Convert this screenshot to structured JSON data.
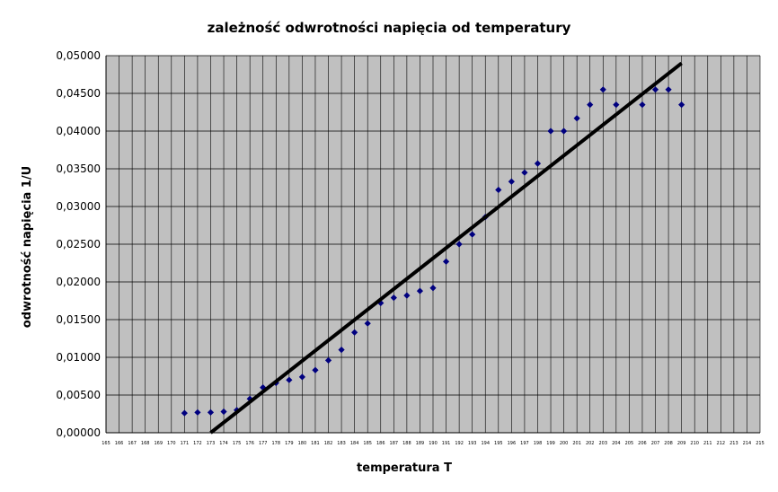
{
  "chart_data": {
    "type": "scatter",
    "title": "zależność odwrotności napięcia od temperatury",
    "xlabel": "temperatura T",
    "ylabel": "odwrotność napięcia 1/U",
    "xlim": [
      165,
      215
    ],
    "ylim": [
      0,
      0.05
    ],
    "x_ticks": [
      165,
      166,
      167,
      168,
      169,
      170,
      171,
      172,
      173,
      174,
      175,
      176,
      177,
      178,
      179,
      180,
      181,
      182,
      183,
      184,
      185,
      186,
      187,
      188,
      189,
      190,
      191,
      192,
      193,
      194,
      195,
      196,
      197,
      198,
      199,
      200,
      201,
      202,
      203,
      204,
      205,
      206,
      207,
      208,
      209,
      210,
      211,
      212,
      213,
      214,
      215
    ],
    "y_ticks": [
      "0,00000",
      "0,00500",
      "0,01000",
      "0,01500",
      "0,02000",
      "0,02500",
      "0,03000",
      "0,03500",
      "0,04000",
      "0,04500",
      "0,05000"
    ],
    "grid": true,
    "legend": "none",
    "series": [
      {
        "marker": "diamond",
        "color": "#00007f",
        "points": [
          [
            171,
            0.0026
          ],
          [
            172,
            0.0027
          ],
          [
            173,
            0.0027
          ],
          [
            174,
            0.0028
          ],
          [
            175,
            0.003
          ],
          [
            176,
            0.0045
          ],
          [
            177,
            0.006
          ],
          [
            178,
            0.0066
          ],
          [
            179,
            0.007
          ],
          [
            180,
            0.0074
          ],
          [
            181,
            0.0083
          ],
          [
            182,
            0.0096
          ],
          [
            183,
            0.011
          ],
          [
            184,
            0.0133
          ],
          [
            185,
            0.0145
          ],
          [
            186,
            0.0172
          ],
          [
            187,
            0.0179
          ],
          [
            188,
            0.0182
          ],
          [
            189,
            0.0188
          ],
          [
            190,
            0.0192
          ],
          [
            191,
            0.0227
          ],
          [
            192,
            0.025
          ],
          [
            193,
            0.0263
          ],
          [
            194,
            0.0286
          ],
          [
            195,
            0.0322
          ],
          [
            196,
            0.0333
          ],
          [
            197,
            0.0345
          ],
          [
            198,
            0.0357
          ],
          [
            199,
            0.04
          ],
          [
            200,
            0.04
          ],
          [
            201,
            0.0417
          ],
          [
            202,
            0.0435
          ],
          [
            203,
            0.0455
          ],
          [
            204,
            0.0435
          ],
          [
            206,
            0.0435
          ],
          [
            207,
            0.0455
          ],
          [
            208,
            0.0455
          ],
          [
            209,
            0.0435
          ]
        ]
      }
    ],
    "trendline": {
      "type": "linear",
      "color": "#000000",
      "start": [
        173,
        0.0
      ],
      "end": [
        209,
        0.049
      ]
    },
    "colors": {
      "plot_background": "#c0c0c0",
      "gridline": "#000000",
      "marker": "#00007f",
      "trendline": "#000000"
    }
  }
}
